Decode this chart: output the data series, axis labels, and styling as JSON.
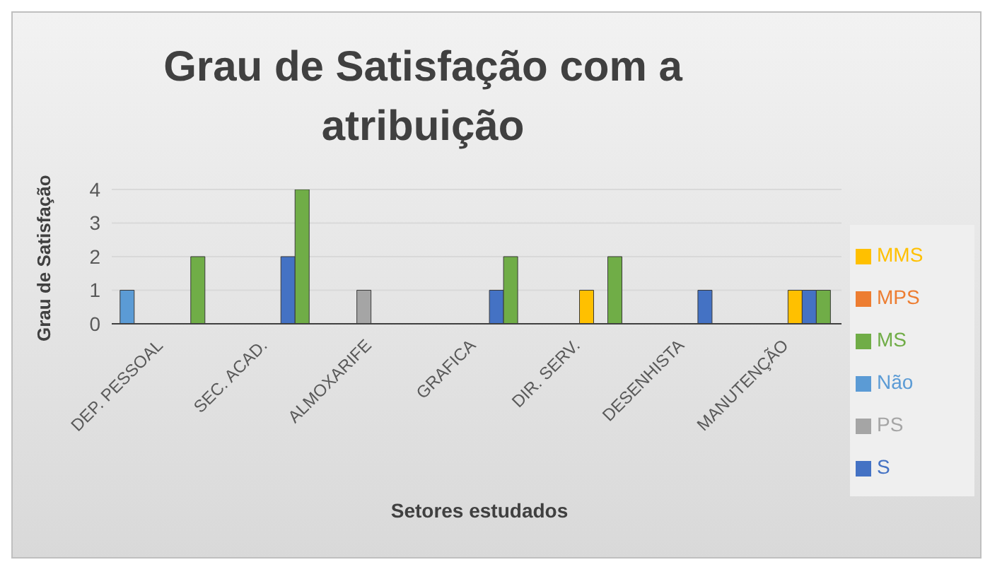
{
  "chart_data": {
    "type": "bar",
    "title": "Grau de Satisfação com a atribuição",
    "xlabel": "Setores estudados",
    "ylabel": "Grau de Satisfação",
    "categories": [
      "DEP. PESSOAL",
      "SEC. ACAD.",
      "ALMOXARIFE",
      "GRAFICA",
      "DIR. SERV.",
      "DESENHISTA",
      "MANUTENÇÃO"
    ],
    "series": [
      {
        "name": "Não",
        "color": "#5b9bd5",
        "values": [
          1,
          null,
          null,
          null,
          null,
          null,
          null
        ]
      },
      {
        "name": "MPS",
        "color": "#ed7d31",
        "values": [
          null,
          null,
          null,
          null,
          null,
          null,
          null
        ]
      },
      {
        "name": "PS",
        "color": "#a5a5a5",
        "values": [
          null,
          null,
          1,
          null,
          null,
          null,
          null
        ]
      },
      {
        "name": "MMS",
        "color": "#ffc000",
        "values": [
          null,
          null,
          null,
          null,
          1,
          null,
          1
        ]
      },
      {
        "name": "S",
        "color": "#4472c4",
        "values": [
          null,
          2,
          null,
          1,
          null,
          1,
          1
        ]
      },
      {
        "name": "MS",
        "color": "#70ad47",
        "values": [
          2,
          4,
          null,
          2,
          2,
          null,
          1
        ]
      }
    ],
    "ylim": [
      0,
      4
    ],
    "yticks": [
      0,
      1,
      2,
      3,
      4
    ],
    "grid": "y",
    "legend": "right"
  }
}
